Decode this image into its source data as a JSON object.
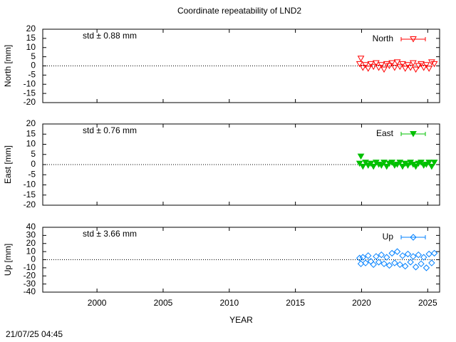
{
  "title": "Coordinate repeatability of LND2",
  "timestamp": "21/07/25 04:45",
  "chart_data": [
    {
      "type": "scatter",
      "ylabel": "North [mm]",
      "annotation": "std ± 0.88 mm",
      "reference_line": 0,
      "xlim": [
        1995.9,
        2025.9
      ],
      "xticks": [
        2000,
        2005,
        2010,
        2015,
        2020,
        2025
      ],
      "ylim": [
        -20,
        20
      ],
      "yticks": [
        -20,
        -15,
        -10,
        -5,
        0,
        5,
        10,
        15,
        20
      ],
      "legend": "top-right",
      "series": [
        {
          "name": "North",
          "color": "#ff0000",
          "marker": "triangle-down-open",
          "x": [
            2019.85,
            2019.95,
            2020.1,
            2020.3,
            2020.5,
            2020.7,
            2020.9,
            2021.1,
            2021.3,
            2021.5,
            2021.7,
            2021.9,
            2022.1,
            2022.3,
            2022.5,
            2022.7,
            2022.9,
            2023.1,
            2023.3,
            2023.5,
            2023.7,
            2023.9,
            2024.1,
            2024.3,
            2024.5,
            2024.7,
            2024.9,
            2025.1,
            2025.3,
            2025.5
          ],
          "values": [
            1,
            4,
            -1,
            0.5,
            -1.5,
            1,
            -0.5,
            1.5,
            -1,
            0.5,
            -2,
            1,
            0,
            1.5,
            -1,
            2,
            -0.5,
            1,
            -1.5,
            0.5,
            -1,
            1.5,
            -2,
            0,
            1,
            -1,
            0.5,
            -1.5,
            2,
            1
          ]
        }
      ]
    },
    {
      "type": "scatter",
      "ylabel": "East [mm]",
      "annotation": "std ± 0.76 mm",
      "reference_line": 0,
      "xlim": [
        1995.9,
        2025.9
      ],
      "xticks": [
        2000,
        2005,
        2010,
        2015,
        2020,
        2025
      ],
      "ylim": [
        -20,
        20
      ],
      "yticks": [
        -20,
        -15,
        -10,
        -5,
        0,
        5,
        10,
        15,
        20
      ],
      "legend": "top-right",
      "series": [
        {
          "name": "East",
          "color": "#00c000",
          "marker": "triangle-down-filled",
          "x": [
            2019.85,
            2019.95,
            2020.1,
            2020.3,
            2020.5,
            2020.7,
            2020.9,
            2021.1,
            2021.3,
            2021.5,
            2021.7,
            2021.9,
            2022.1,
            2022.3,
            2022.5,
            2022.7,
            2022.9,
            2023.1,
            2023.3,
            2023.5,
            2023.7,
            2023.9,
            2024.1,
            2024.3,
            2024.5,
            2024.7,
            2024.9,
            2025.1,
            2025.3,
            2025.5
          ],
          "values": [
            0.5,
            4,
            -1,
            1,
            -0.5,
            0.5,
            -1,
            1,
            0,
            -0.5,
            1,
            -1,
            0.5,
            1,
            -0.5,
            0,
            1,
            -1,
            0.5,
            -0.5,
            1,
            0,
            -1,
            0.5,
            1,
            -0.5,
            0,
            1,
            -1,
            1
          ]
        }
      ]
    },
    {
      "type": "scatter",
      "ylabel": "Up [mm]",
      "annotation": "std ± 3.66 mm",
      "reference_line": 0,
      "xlabel": "YEAR",
      "xlim": [
        1995.9,
        2025.9
      ],
      "xticks": [
        2000,
        2005,
        2010,
        2015,
        2020,
        2025
      ],
      "ylim": [
        -40,
        40
      ],
      "yticks": [
        -40,
        -30,
        -20,
        -10,
        0,
        10,
        20,
        30,
        40
      ],
      "legend": "top-right",
      "series": [
        {
          "name": "Up",
          "color": "#0080ff",
          "marker": "diamond-open",
          "x": [
            2019.85,
            2019.95,
            2020.1,
            2020.3,
            2020.5,
            2020.7,
            2020.9,
            2021.1,
            2021.3,
            2021.5,
            2021.7,
            2021.9,
            2022.1,
            2022.3,
            2022.5,
            2022.7,
            2022.9,
            2023.1,
            2023.3,
            2023.5,
            2023.7,
            2023.9,
            2024.1,
            2024.3,
            2024.5,
            2024.7,
            2024.9,
            2025.1,
            2025.3,
            2025.5
          ],
          "values": [
            2,
            -5,
            3,
            -4,
            5,
            -2,
            -6,
            4,
            -3,
            6,
            -5,
            3,
            -7,
            8,
            -4,
            10,
            -6,
            5,
            -8,
            7,
            -3,
            4,
            -9,
            6,
            -5,
            3,
            -10,
            7,
            -4,
            8
          ]
        }
      ]
    }
  ]
}
